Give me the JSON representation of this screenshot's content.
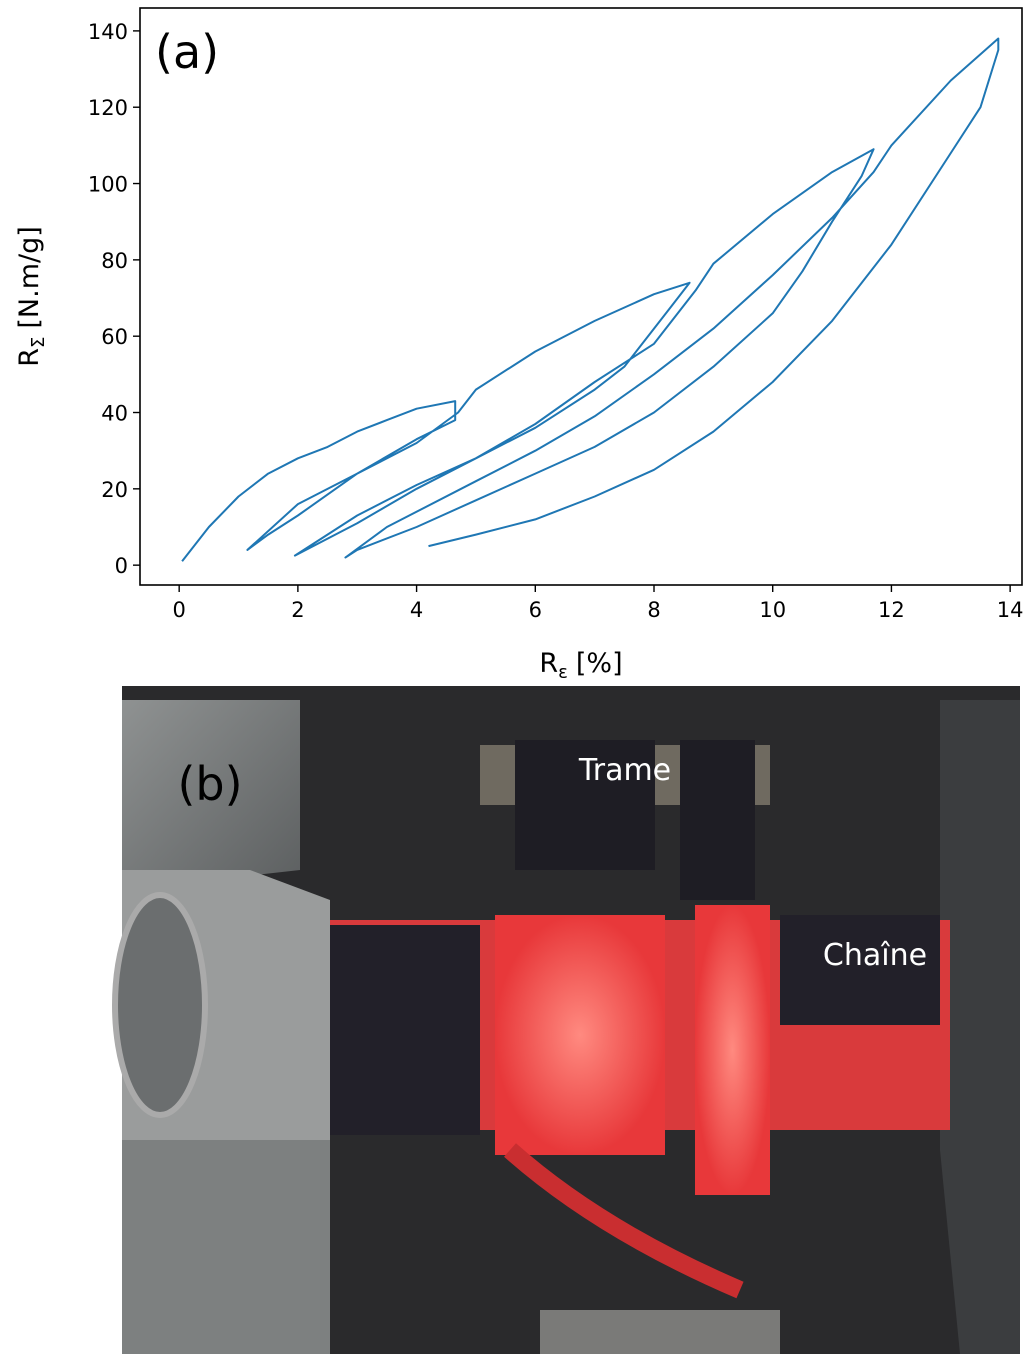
{
  "chart_data": {
    "type": "line",
    "annotation": "(a)",
    "x_label": {
      "symbol": "R",
      "subscript": "ε",
      "unit": "[%]"
    },
    "y_label": {
      "symbol": "R",
      "subscript": "Σ",
      "unit": "[N.m/g]"
    },
    "xlim": [
      -0.66,
      14.2
    ],
    "ylim": [
      -5.2,
      146
    ],
    "xticks": [
      0,
      2,
      4,
      6,
      8,
      10,
      12,
      14
    ],
    "yticks": [
      0,
      20,
      40,
      60,
      80,
      100,
      120,
      140
    ],
    "series": [
      {
        "color": "#1f77b4",
        "x": [
          0.05,
          0.5,
          1,
          1.5,
          2,
          2.5,
          3,
          3.5,
          4,
          4.65,
          4.65,
          4,
          3,
          2,
          1.5,
          1.15,
          2,
          3,
          4,
          4.7,
          5,
          6,
          7,
          8,
          8.6,
          8.3,
          8,
          7.5,
          7,
          6,
          5,
          4,
          3,
          1.95,
          3,
          4,
          5,
          6,
          7,
          8,
          8.7,
          9,
          10,
          11,
          11.7,
          11.5,
          11,
          10.5,
          10,
          9,
          8,
          7,
          6,
          5,
          4,
          3,
          2.8,
          3.5,
          5,
          6,
          7,
          8,
          9,
          10,
          11,
          11.7,
          12,
          13,
          13.8,
          13.8,
          13.5,
          13,
          12,
          11,
          10,
          9,
          8,
          7,
          6,
          5,
          4.2
        ],
        "values": [
          1,
          10,
          18,
          24,
          28,
          31,
          35,
          38,
          41,
          43,
          38,
          33,
          24,
          13,
          8,
          4,
          16,
          24,
          32,
          40,
          46,
          56,
          64,
          71,
          74,
          68,
          62,
          52,
          46,
          36,
          28,
          21,
          13,
          2.5,
          11,
          20,
          28,
          37,
          48,
          58,
          72,
          79,
          92,
          103,
          109,
          102,
          90,
          77,
          66,
          52,
          40,
          31,
          24,
          17,
          10,
          4,
          2,
          10,
          22,
          30,
          39,
          50,
          62,
          76,
          91,
          103,
          110,
          127,
          138,
          135,
          120,
          108,
          84,
          64,
          48,
          35,
          25,
          18,
          12,
          8,
          5
        ]
      }
    ]
  },
  "photo": {
    "label": "(b)",
    "annotations": [
      "Trame",
      "Chaîne"
    ]
  }
}
